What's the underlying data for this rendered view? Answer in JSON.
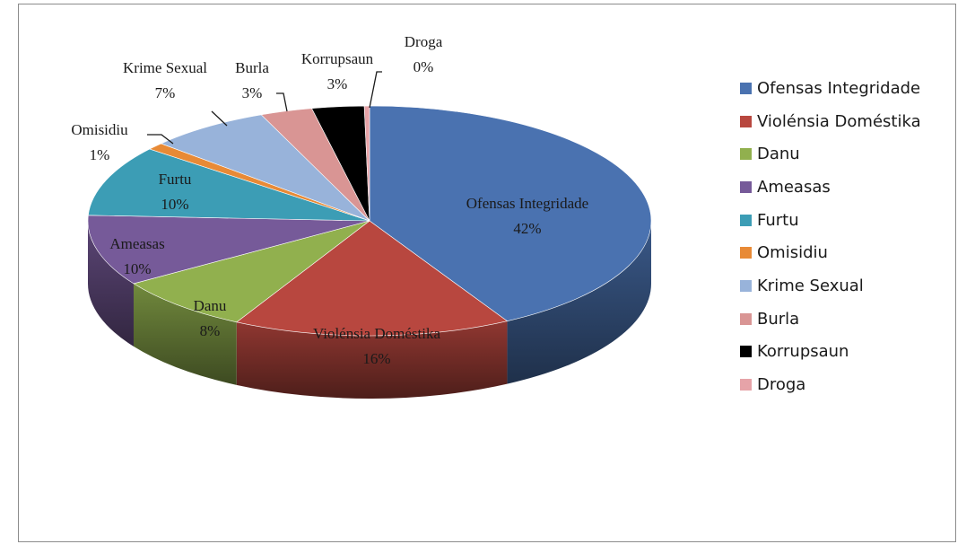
{
  "chart_data": {
    "type": "pie",
    "title": "",
    "slices": [
      {
        "name": "Ofensas Integridade",
        "value": 42,
        "label_pct": "42%",
        "color": "#4a72b0"
      },
      {
        "name": "Violénsia Doméstika",
        "value": 16,
        "label_pct": "16%",
        "color": "#b8473f"
      },
      {
        "name": "Danu",
        "value": 8,
        "label_pct": "8%",
        "color": "#91b04e"
      },
      {
        "name": "Ameasas",
        "value": 10,
        "label_pct": "10%",
        "color": "#765a99"
      },
      {
        "name": "Furtu",
        "value": 10,
        "label_pct": "10%",
        "color": "#3c9db5"
      },
      {
        "name": "Omisidiu",
        "value": 1,
        "label_pct": "1%",
        "color": "#e88a36"
      },
      {
        "name": "Krime Sexual",
        "value": 7,
        "label_pct": "7%",
        "color": "#98b3da"
      },
      {
        "name": "Burla",
        "value": 3,
        "label_pct": "3%",
        "color": "#d99594"
      },
      {
        "name": "Korrupsaun",
        "value": 3,
        "label_pct": "3%",
        "color": "#000000"
      },
      {
        "name": "Droga",
        "value": 0.3,
        "label_pct": "0%",
        "color": "#e6a3a8"
      }
    ],
    "legend": {
      "position": "right",
      "items": [
        "Ofensas Integridade",
        "Violénsia Doméstika",
        "Danu",
        "Ameasas",
        "Furtu",
        "Omisidiu",
        "Krime Sexual",
        "Burla",
        "Korrupsaun",
        "Droga"
      ]
    },
    "style": "3d-pie"
  }
}
